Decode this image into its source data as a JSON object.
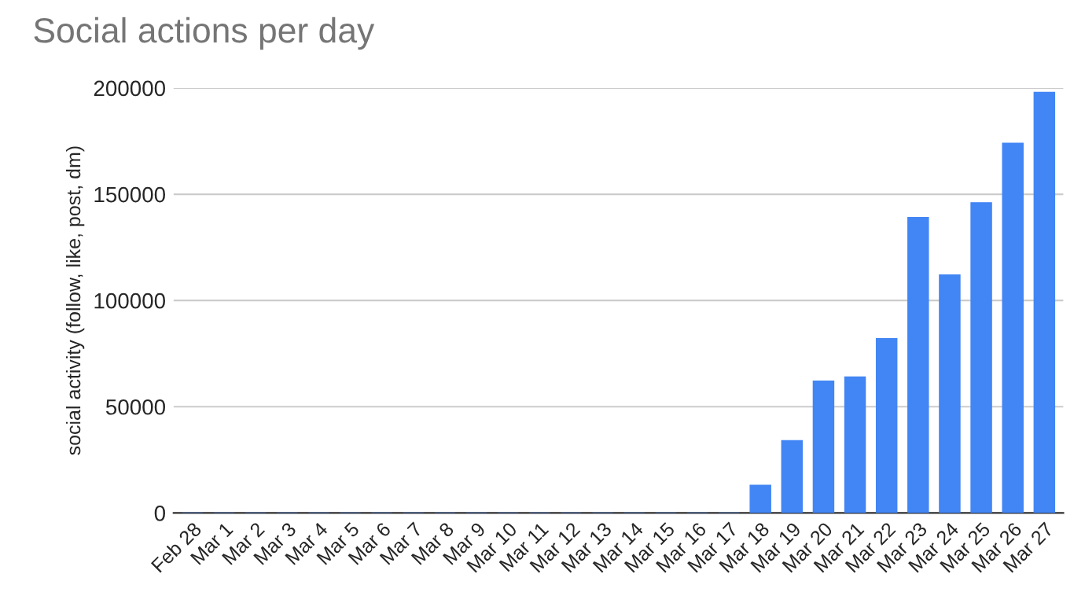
{
  "chart_data": {
    "type": "bar",
    "title": "Social actions per day",
    "ylabel": "social activity (follow, like, post, dm)",
    "categories": [
      "Feb 28",
      "Mar 1",
      "Mar 2",
      "Mar 3",
      "Mar 4",
      "Mar 5",
      "Mar 6",
      "Mar 7",
      "Mar 8",
      "Mar 9",
      "Mar 10",
      "Mar 11",
      "Mar 12",
      "Mar 13",
      "Mar 14",
      "Mar 15",
      "Mar 16",
      "Mar 17",
      "Mar 18",
      "Mar 19",
      "Mar 20",
      "Mar 21",
      "Mar 22",
      "Mar 23",
      "Mar 24",
      "Mar 25",
      "Mar 26",
      "Mar 27"
    ],
    "values": [
      0,
      0,
      0,
      0,
      0,
      0,
      0,
      0,
      0,
      0,
      0,
      0,
      0,
      0,
      0,
      0,
      0,
      0,
      13000,
      34000,
      62000,
      64000,
      82000,
      139000,
      112000,
      146000,
      174000,
      198000
    ],
    "color": "#4285f4",
    "ylim": [
      0,
      200000
    ],
    "yticks": [
      0,
      50000,
      100000,
      150000,
      200000
    ],
    "grid": "y",
    "legend": false
  }
}
